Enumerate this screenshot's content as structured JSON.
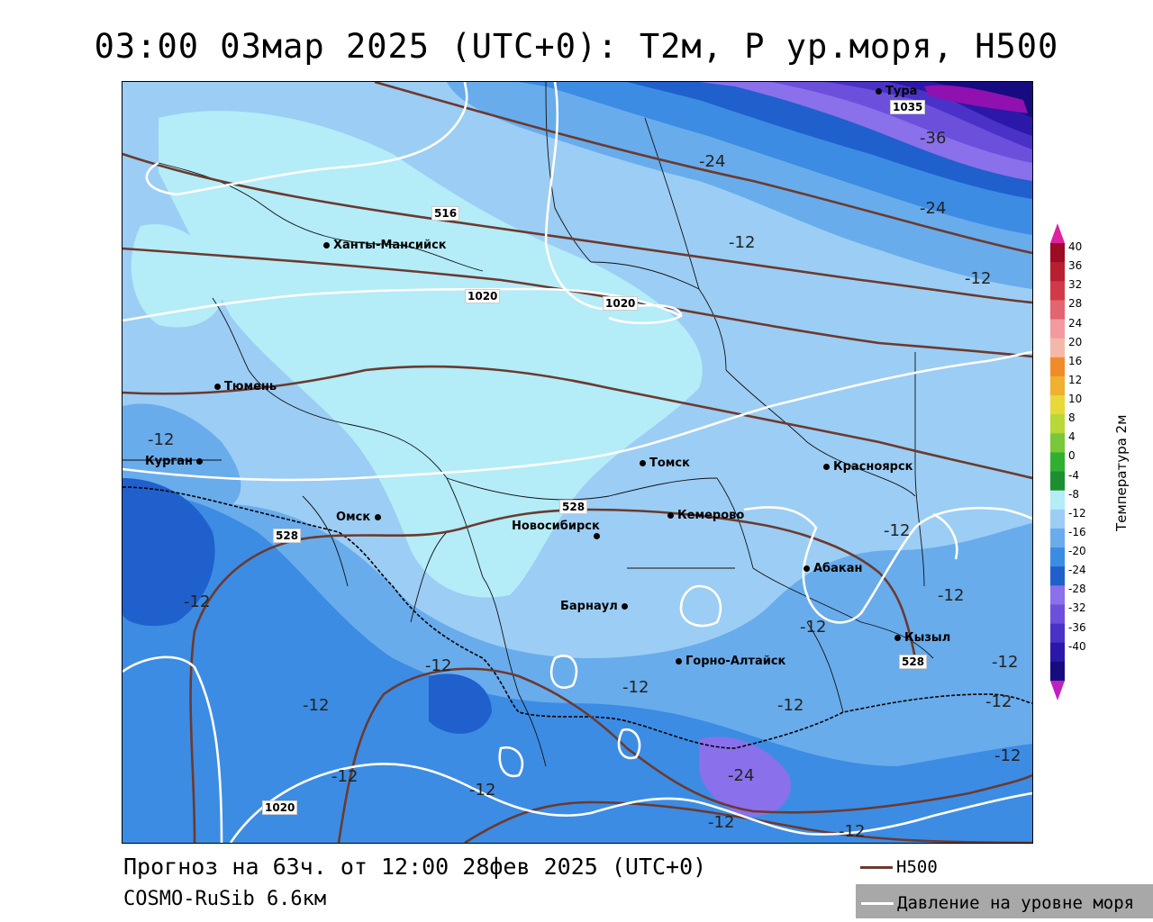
{
  "title": "03:00 03мар 2025 (UTC+0): T2м, P ур.моря, H500",
  "forecast_text": "Прогноз на 63ч. от 12:00 28фев 2025 (UTC+0)",
  "model_text": "COSMO-RuSib 6.6км",
  "legend": {
    "h500_label": "H500",
    "h500_color": "#6b3a2e",
    "pressure_label": "Давление на уровне моря",
    "pressure_color": "#ffffff"
  },
  "colorbar": {
    "title": "Температура 2м",
    "levels": [
      "40",
      "36",
      "32",
      "28",
      "24",
      "20",
      "16",
      "12",
      "10",
      "8",
      "4",
      "0",
      "-4",
      "-8",
      "-12",
      "-16",
      "-20",
      "-24",
      "-28",
      "-32",
      "-36",
      "-40"
    ],
    "colors": [
      "#9c0c24",
      "#b82032",
      "#d23a48",
      "#e46470",
      "#f29aa0",
      "#f4b8a8",
      "#f08c28",
      "#f0b030",
      "#e8d838",
      "#b8d838",
      "#78c838",
      "#30b030",
      "#1c9030",
      "#b4ecf8",
      "#9ccdf4",
      "#68acec",
      "#3c8ce4",
      "#2060cc",
      "#8a70ea",
      "#6c50dc",
      "#4a32c8",
      "#2c18a8",
      "#160c80"
    ],
    "top_color": "#e020a0",
    "bottom_color": "#c020c0"
  },
  "cities": [
    {
      "name": "Тура"
    },
    {
      "name": "Ханты-Мансийск"
    },
    {
      "name": "Тюмень"
    },
    {
      "name": "Курган"
    },
    {
      "name": "Омск"
    },
    {
      "name": "Томск"
    },
    {
      "name": "Красноярск"
    },
    {
      "name": "Новосибирск"
    },
    {
      "name": "Кемерово"
    },
    {
      "name": "Абакан"
    },
    {
      "name": "Барнаул"
    },
    {
      "name": "Кызыл"
    },
    {
      "name": "Горно-Алтайск"
    }
  ],
  "isotherm_labels": [
    "-24",
    "-36",
    "-24",
    "-12",
    "-12",
    "-12",
    "-12",
    "-12",
    "-12",
    "-12",
    "-12",
    "-12",
    "-12",
    "-12",
    "-12",
    "-12",
    "-12",
    "-12",
    "-12",
    "-24",
    "-12",
    "-12"
  ],
  "h500_labels": [
    "516",
    "528",
    "528",
    "528"
  ],
  "pressure_labels": [
    "1035",
    "1020",
    "1020",
    "1020"
  ]
}
